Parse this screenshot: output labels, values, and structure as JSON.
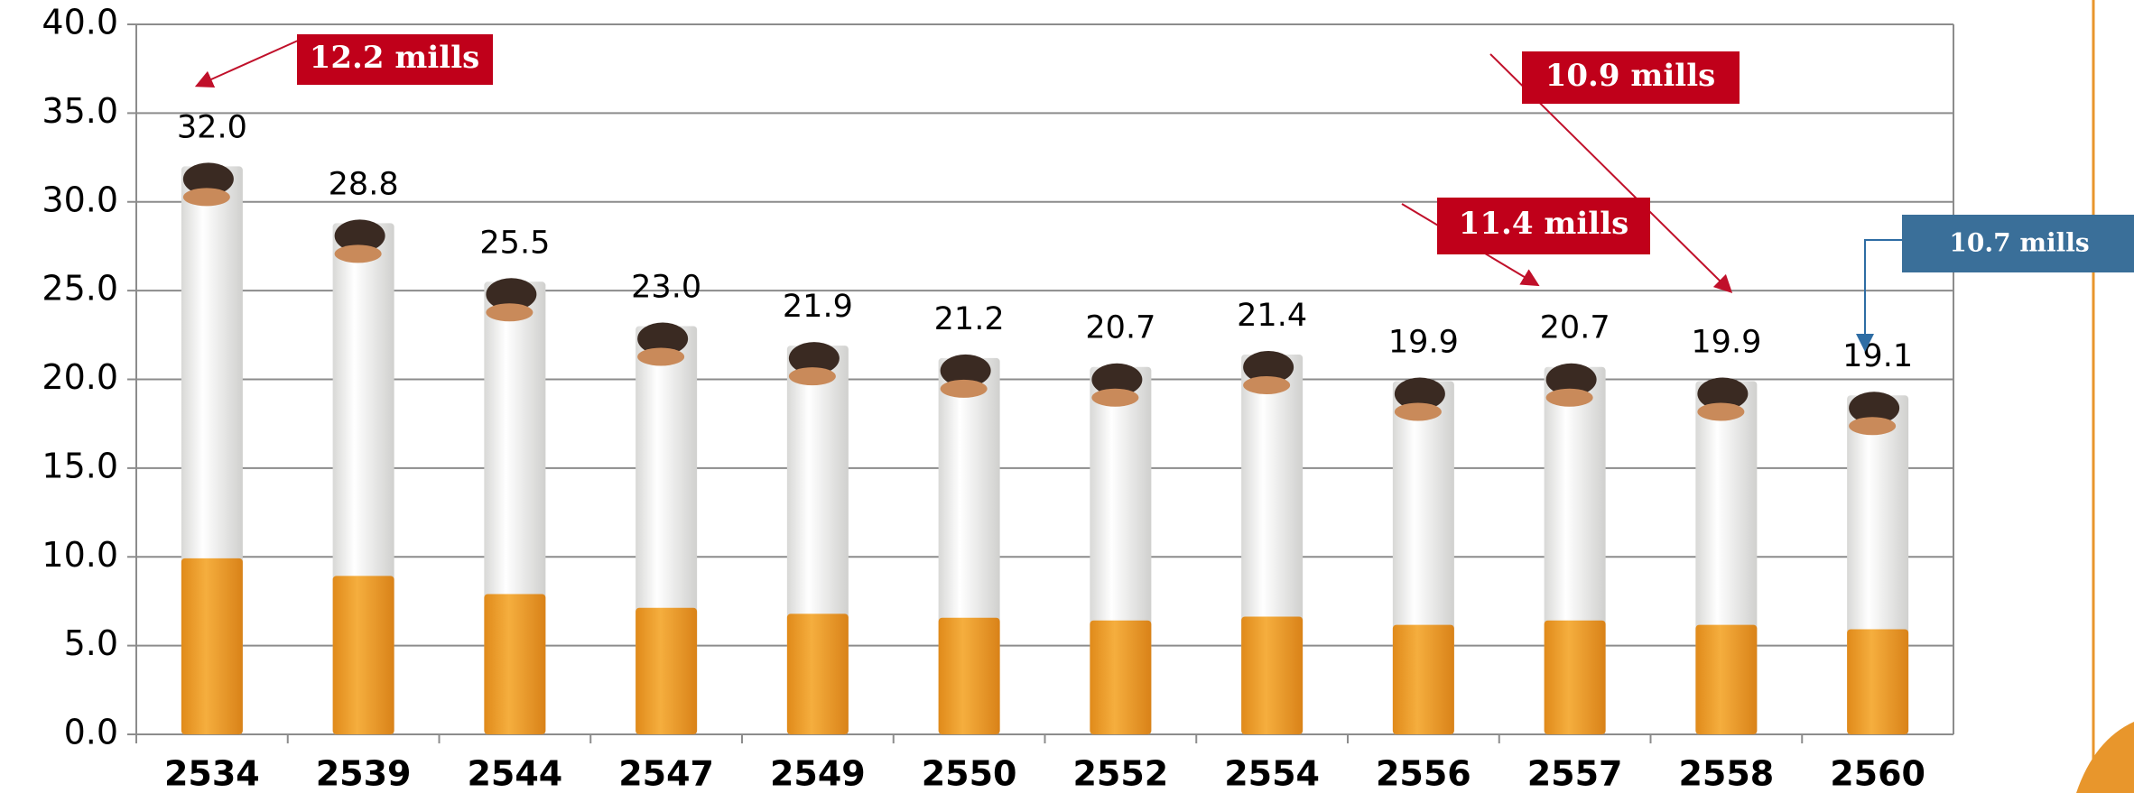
{
  "chart_data": {
    "type": "bar",
    "categories": [
      "2534",
      "2539",
      "2544",
      "2547",
      "2549",
      "2550",
      "2552",
      "2554",
      "2556",
      "2557",
      "2558",
      "2560"
    ],
    "values": [
      32.0,
      28.8,
      25.5,
      23.0,
      21.9,
      21.2,
      20.7,
      21.4,
      19.9,
      20.7,
      19.9,
      19.1
    ],
    "value_labels": [
      "32.0",
      "28.8",
      "25.5",
      "23.0",
      "21.9",
      "21.2",
      "20.7",
      "21.4",
      "19.9",
      "20.7",
      "19.9",
      "19.1"
    ],
    "color": "#f4f4f2",
    "ylim": [
      0,
      40
    ],
    "yticks": [
      {
        "value": 0,
        "label": "0.0"
      },
      {
        "value": 5,
        "label": "5.0"
      },
      {
        "value": 10,
        "label": "10.0"
      },
      {
        "value": 15,
        "label": "15.0"
      },
      {
        "value": 20,
        "label": "20.0"
      },
      {
        "value": 25,
        "label": "25.0"
      },
      {
        "value": 30,
        "label": "30.0"
      },
      {
        "value": 35,
        "label": "35.0"
      },
      {
        "value": 40,
        "label": "40.0"
      }
    ],
    "grid": true,
    "annotations": [
      "12.2 mills",
      "10.9 mills",
      "11.4 mills",
      "10.7 mills"
    ]
  }
}
